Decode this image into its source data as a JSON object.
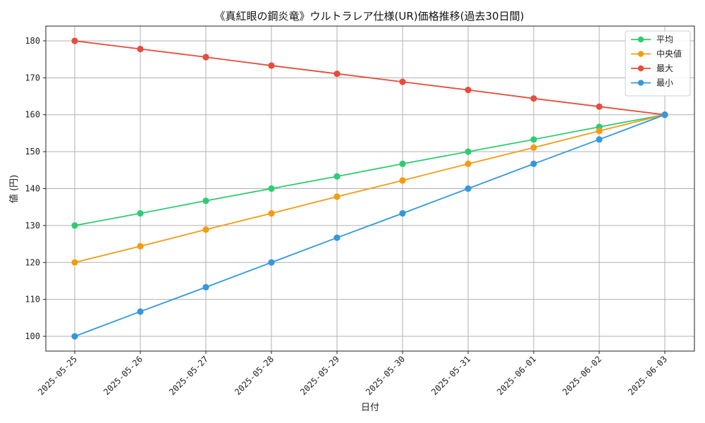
{
  "chart_data": {
    "type": "line",
    "title": "《真紅眼の鋼炎竜》ウルトラレア仕様(UR)価格推移(過去30日間)",
    "xlabel": "日付",
    "ylabel": "値 (円)",
    "categories": [
      "2025-05-25",
      "2025-05-26",
      "2025-05-27",
      "2025-05-28",
      "2025-05-29",
      "2025-05-30",
      "2025-05-31",
      "2025-06-01",
      "2025-06-02",
      "2025-06-03"
    ],
    "ylim": [
      96,
      184
    ],
    "yticks": [
      100,
      110,
      120,
      130,
      140,
      150,
      160,
      170,
      180
    ],
    "grid": true,
    "legend_position": "top-right",
    "series": [
      {
        "name": "平均",
        "color": "#2ecc71",
        "values": [
          130,
          133.3,
          136.7,
          140,
          143.3,
          146.7,
          150,
          153.3,
          156.7,
          160
        ]
      },
      {
        "name": "中央値",
        "color": "#f39c12",
        "values": [
          120,
          124.4,
          128.9,
          133.3,
          137.8,
          142.2,
          146.7,
          151.1,
          155.6,
          160
        ]
      },
      {
        "name": "最大",
        "color": "#e74c3c",
        "values": [
          180,
          177.8,
          175.6,
          173.3,
          171.1,
          168.9,
          166.7,
          164.4,
          162.2,
          160
        ]
      },
      {
        "name": "最小",
        "color": "#3498db",
        "values": [
          100,
          106.7,
          113.3,
          120,
          126.7,
          133.3,
          140,
          146.7,
          153.3,
          160
        ]
      }
    ]
  }
}
